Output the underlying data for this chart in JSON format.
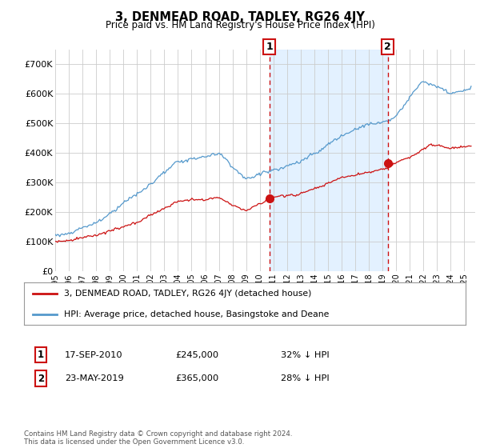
{
  "title": "3, DENMEAD ROAD, TADLEY, RG26 4JY",
  "subtitle": "Price paid vs. HM Land Registry's House Price Index (HPI)",
  "background_color": "#ffffff",
  "plot_bg_color": "#ffffff",
  "grid_color": "#cccccc",
  "ylim": [
    0,
    750000
  ],
  "yticks": [
    0,
    100000,
    200000,
    300000,
    400000,
    500000,
    600000,
    700000
  ],
  "ytick_labels": [
    "£0",
    "£100K",
    "£200K",
    "£300K",
    "£400K",
    "£500K",
    "£600K",
    "£700K"
  ],
  "xlim_start": 1995.0,
  "xlim_end": 2025.8,
  "hpi_color": "#5599cc",
  "hpi_fill_color": "#ddeeff",
  "house_color": "#cc1111",
  "marker1_x": 2010.72,
  "marker1_y": 245000,
  "marker1_label": "1",
  "marker2_x": 2019.39,
  "marker2_y": 365000,
  "marker2_label": "2",
  "legend_line1": "3, DENMEAD ROAD, TADLEY, RG26 4JY (detached house)",
  "legend_line2": "HPI: Average price, detached house, Basingstoke and Deane",
  "tx1_num": "1",
  "tx1_date": "17-SEP-2010",
  "tx1_price": "£245,000",
  "tx1_note": "32% ↓ HPI",
  "tx2_num": "2",
  "tx2_date": "23-MAY-2019",
  "tx2_price": "£365,000",
  "tx2_note": "28% ↓ HPI",
  "footer": "Contains HM Land Registry data © Crown copyright and database right 2024.\nThis data is licensed under the Open Government Licence v3.0."
}
